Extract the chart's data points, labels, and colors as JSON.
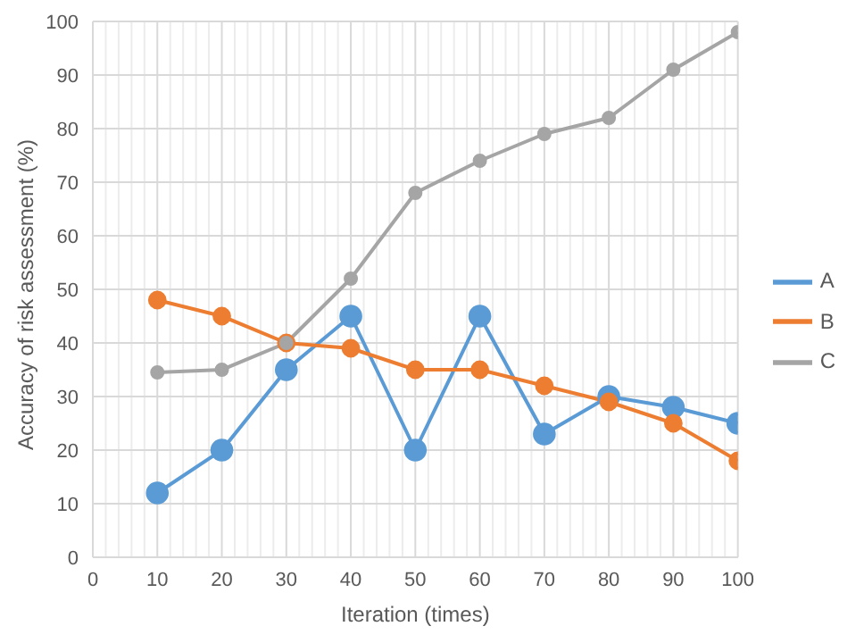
{
  "chart_data": {
    "type": "line",
    "xlabel": "Iteration (times)",
    "ylabel": "Accuracy of risk assessment (%)",
    "x": [
      10,
      20,
      30,
      40,
      50,
      60,
      70,
      80,
      90,
      100
    ],
    "series": [
      {
        "name": "A",
        "color": "#5b9bd5",
        "values": [
          12,
          20,
          35,
          45,
          20,
          45,
          23,
          30,
          28,
          25
        ]
      },
      {
        "name": "B",
        "color": "#ed7d31",
        "values": [
          48,
          45,
          40,
          39,
          35,
          35,
          32,
          29,
          25,
          18
        ]
      },
      {
        "name": "C",
        "color": "#a5a5a5",
        "values": [
          34.5,
          35,
          40,
          52,
          68,
          74,
          79,
          82,
          91,
          98
        ]
      }
    ],
    "xlim": [
      0,
      100
    ],
    "xticks": [
      0,
      10,
      20,
      30,
      40,
      50,
      60,
      70,
      80,
      90,
      100
    ],
    "ylim": [
      0,
      100
    ],
    "yticks": [
      0,
      10,
      20,
      30,
      40,
      50,
      60,
      70,
      80,
      90,
      100
    ],
    "grid": true,
    "legend": "right",
    "marker": "circle",
    "line_style": "solid"
  }
}
